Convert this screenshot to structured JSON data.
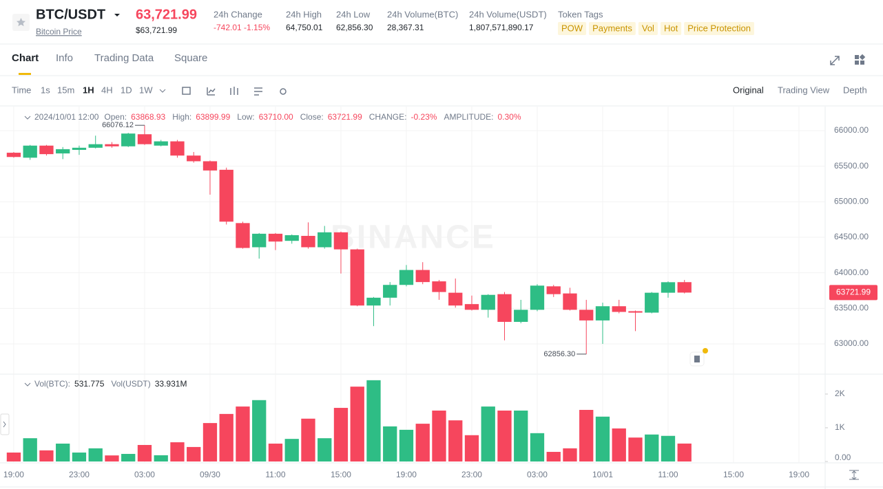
{
  "header": {
    "symbol": "BTC/USDT",
    "subtitle": "Bitcoin Price",
    "price": "63,721.99",
    "price_usd": "$63,721.99",
    "stats": [
      {
        "label": "24h Change",
        "value": "-742.01 -1.15%"
      },
      {
        "label": "24h High",
        "value": "64,750.01"
      },
      {
        "label": "24h Low",
        "value": "62,856.30"
      },
      {
        "label": "24h Volume(BTC)",
        "value": "28,367.31"
      },
      {
        "label": "24h Volume(USDT)",
        "value": "1,807,571,890.17"
      }
    ],
    "tags_label": "Token Tags",
    "tags": [
      "POW",
      "Payments",
      "Vol",
      "Hot",
      "Price Protection"
    ]
  },
  "tabs": [
    "Chart",
    "Info",
    "Trading Data",
    "Square"
  ],
  "intervals": [
    "Time",
    "1s",
    "15m",
    "1H",
    "4H",
    "1D",
    "1W"
  ],
  "views": [
    "Original",
    "Trading View",
    "Depth"
  ],
  "watermark": "BINANCE",
  "chart_data": [
    {
      "type": "candlestick",
      "legend_time": "2024/10/01 12:00",
      "legend": [
        {
          "label": "Open:",
          "value": "63868.93"
        },
        {
          "label": "High:",
          "value": "63899.99"
        },
        {
          "label": "Low:",
          "value": "63710.00"
        },
        {
          "label": "Close:",
          "value": "63721.99"
        },
        {
          "label": "CHANGE:",
          "value": "-0.23%"
        },
        {
          "label": "AMPLITUDE:",
          "value": "0.30%"
        }
      ],
      "x": [
        0,
        1,
        2,
        3,
        4,
        5,
        6,
        7,
        8,
        9,
        10,
        11,
        12,
        13,
        14,
        15,
        16,
        17,
        18,
        19,
        20,
        21,
        22,
        23,
        24,
        25,
        26,
        27,
        28,
        29,
        30,
        31,
        32,
        33,
        34,
        35,
        36,
        37,
        38,
        39,
        40,
        41
      ],
      "open": [
        65690,
        65620,
        65790,
        65680,
        65730,
        65760,
        65810,
        65780,
        65950,
        65790,
        65850,
        65650,
        65570,
        65450,
        64700,
        64360,
        64550,
        64450,
        64520,
        64360,
        64570,
        64330,
        63540,
        63650,
        63830,
        64040,
        63880,
        63720,
        63560,
        63480,
        63700,
        63310,
        63480,
        63810,
        63710,
        63480,
        63330,
        63530,
        63460,
        63440,
        63720,
        63868.93
      ],
      "high": [
        65700,
        65800,
        65800,
        65770,
        65790,
        65930,
        65840,
        65970,
        66076.12,
        65870,
        65870,
        65700,
        65580,
        65480,
        64720,
        64560,
        64560,
        64540,
        64710,
        64660,
        64580,
        64340,
        63660,
        63870,
        64110,
        64150,
        63900,
        63920,
        63680,
        63700,
        63730,
        63620,
        63840,
        63830,
        63790,
        63620,
        63580,
        63620,
        63470,
        63730,
        63880,
        63899.99
      ],
      "low": [
        65620,
        65590,
        65650,
        65600,
        65660,
        65750,
        65760,
        65770,
        65800,
        65780,
        65620,
        65550,
        65100,
        64680,
        64340,
        64200,
        64320,
        64410,
        64340,
        64340,
        63990,
        63530,
        63250,
        63540,
        63810,
        63840,
        63620,
        63510,
        63470,
        63370,
        63050,
        63290,
        63460,
        63660,
        63470,
        62856.3,
        63000,
        63430,
        63180,
        63430,
        63650,
        63710.0
      ],
      "close": [
        65630,
        65790,
        65670,
        65740,
        65760,
        65810,
        65780,
        65960,
        65810,
        65850,
        65650,
        65570,
        65440,
        64720,
        64350,
        64550,
        64440,
        64530,
        64360,
        64570,
        64330,
        63540,
        63650,
        63830,
        64040,
        63870,
        63730,
        63540,
        63480,
        63690,
        63310,
        63480,
        63820,
        63700,
        63480,
        63330,
        63530,
        63450,
        63440,
        63720,
        63868,
        63721.99
      ],
      "up_color": "#2ebd85",
      "down_color": "#f6465d",
      "xlim": [
        -0.84,
        49.6
      ],
      "xticks": [
        {
          "value": 0,
          "label": "19:00"
        },
        {
          "value": 4,
          "label": "23:00"
        },
        {
          "value": 8,
          "label": "03:00"
        },
        {
          "value": 12,
          "label": "09/30"
        },
        {
          "value": 16,
          "label": "11:00"
        },
        {
          "value": 20,
          "label": "15:00"
        },
        {
          "value": 24,
          "label": "19:00"
        },
        {
          "value": 28,
          "label": "23:00"
        },
        {
          "value": 32,
          "label": "03:00"
        },
        {
          "value": 36,
          "label": "10/01"
        },
        {
          "value": 40,
          "label": "11:00"
        },
        {
          "value": 44,
          "label": "15:00"
        },
        {
          "value": 48,
          "label": "19:00"
        }
      ],
      "ylim": [
        62584,
        66339
      ],
      "yticks": [
        {
          "value": 63000,
          "label": "63000.00"
        },
        {
          "value": 63500,
          "label": "63500.00"
        },
        {
          "value": 64000,
          "label": "64000.00"
        },
        {
          "value": 64500,
          "label": "64500.00"
        },
        {
          "value": 65000,
          "label": "65000.00"
        },
        {
          "value": 65500,
          "label": "65500.00"
        },
        {
          "value": 66000,
          "label": "66000.00"
        }
      ],
      "grid": true,
      "annotations": [
        "66076.12",
        "62856.30"
      ],
      "last_price_label": "63721.99"
    },
    {
      "type": "bar",
      "legend": [
        {
          "label": "Vol(BTC):",
          "value": "531.775"
        },
        {
          "label": "Vol(USDT)",
          "value": "33.931M"
        }
      ],
      "values": [
        265,
        690,
        330,
        530,
        265,
        390,
        180,
        225,
        490,
        185,
        570,
        430,
        1140,
        1410,
        1630,
        1820,
        530,
        670,
        1270,
        690,
        1590,
        2220,
        2410,
        1040,
        940,
        1120,
        1510,
        1220,
        780,
        1630,
        1510,
        1510,
        840,
        285,
        390,
        1530,
        1330,
        980,
        710,
        800,
        760,
        531.775
      ],
      "ylim": [
        0,
        2570
      ],
      "yticks": [
        {
          "value": 0,
          "label": "0.00"
        },
        {
          "value": 1000,
          "label": "1K"
        },
        {
          "value": 2000,
          "label": "2K"
        }
      ]
    }
  ]
}
